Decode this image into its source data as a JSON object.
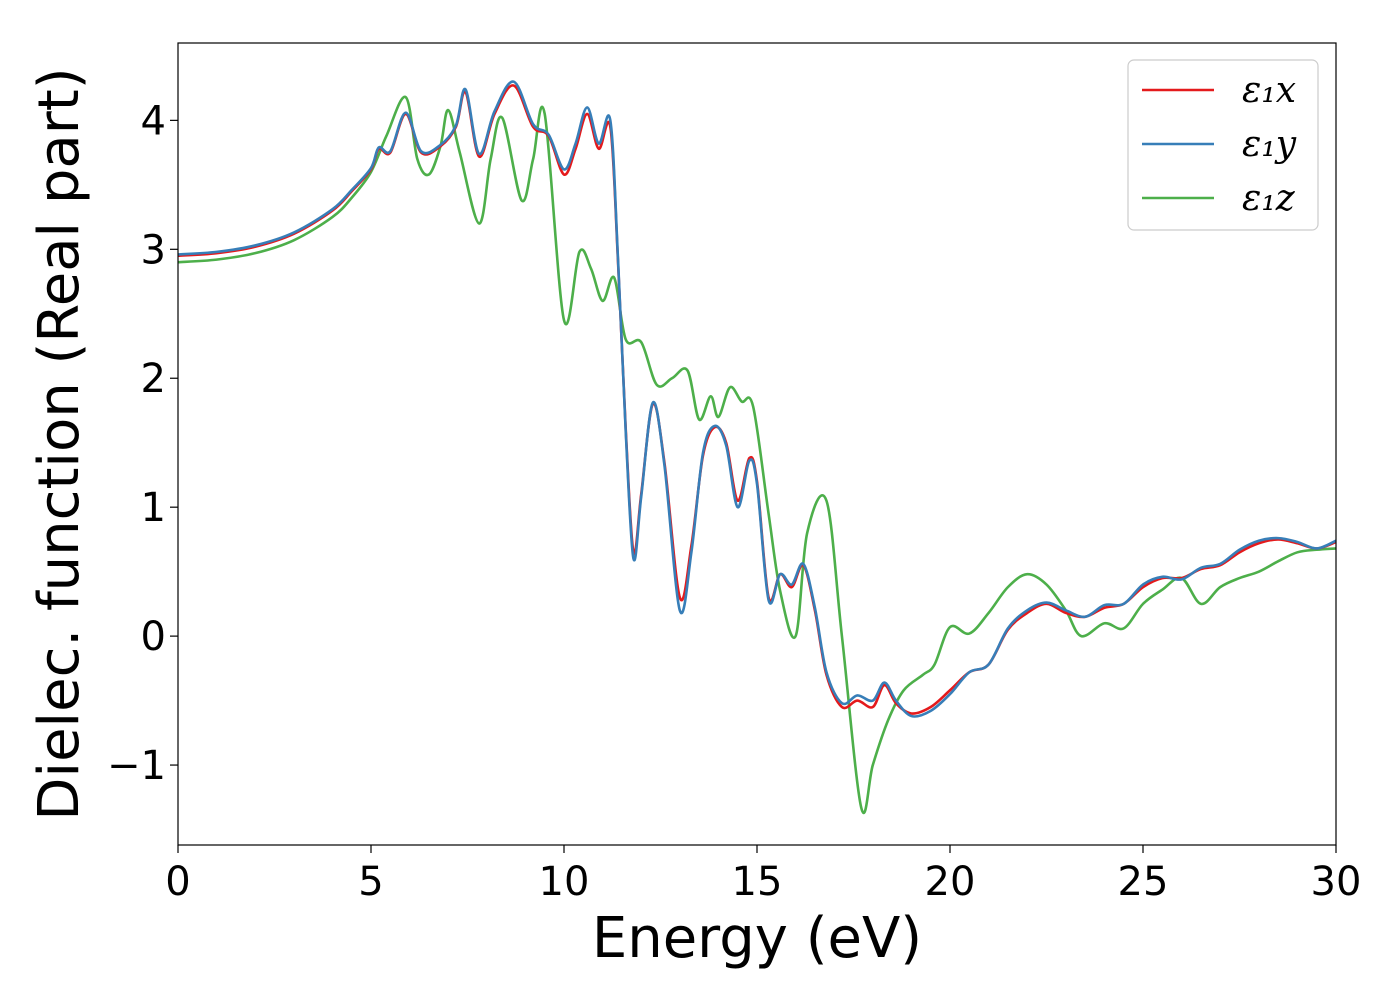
{
  "chart_data": {
    "type": "line",
    "title": "",
    "xlabel": "Energy (eV)",
    "ylabel": "Dielec. function (Real part)",
    "xlim": [
      0,
      30
    ],
    "ylim": [
      -1.62,
      4.6
    ],
    "xticks": [
      0,
      5,
      10,
      15,
      20,
      25,
      30
    ],
    "yticks": [
      -1,
      0,
      1,
      2,
      3,
      4
    ],
    "xtick_labels": [
      "0",
      "5",
      "10",
      "15",
      "20",
      "25",
      "30"
    ],
    "ytick_labels": [
      "−1",
      "0",
      "1",
      "2",
      "3",
      "4"
    ],
    "grid": false,
    "legend_position": "top-right",
    "series": [
      {
        "name": "ε₁x",
        "color": "#e41a1c",
        "x": [
          0,
          1,
          2,
          3,
          4,
          4.5,
          5,
          5.2,
          5.5,
          5.9,
          6.3,
          6.8,
          7.2,
          7.45,
          7.8,
          8.2,
          8.7,
          9.2,
          9.6,
          10.0,
          10.3,
          10.6,
          10.9,
          11.2,
          11.4,
          11.6,
          11.8,
          12.0,
          12.3,
          12.6,
          13.0,
          13.3,
          13.6,
          13.9,
          14.2,
          14.5,
          14.8,
          15.0,
          15.3,
          15.6,
          15.9,
          16.2,
          16.5,
          16.8,
          17.2,
          17.6,
          18.0,
          18.3,
          18.6,
          19.0,
          19.5,
          20.0,
          20.5,
          21.0,
          21.5,
          22.0,
          22.5,
          23.0,
          23.5,
          24.0,
          24.5,
          25.0,
          25.5,
          26.0,
          26.5,
          27.0,
          27.5,
          28.0,
          28.5,
          29.0,
          29.5,
          30
        ],
        "y": [
          2.95,
          2.97,
          3.02,
          3.12,
          3.3,
          3.45,
          3.62,
          3.78,
          3.75,
          4.05,
          3.75,
          3.8,
          3.95,
          4.22,
          3.72,
          4.05,
          4.27,
          3.95,
          3.88,
          3.58,
          3.78,
          4.05,
          3.78,
          3.95,
          2.9,
          1.6,
          0.65,
          1.1,
          1.8,
          1.35,
          0.3,
          0.7,
          1.4,
          1.62,
          1.5,
          1.05,
          1.38,
          1.2,
          0.3,
          0.48,
          0.38,
          0.55,
          0.2,
          -0.3,
          -0.55,
          -0.5,
          -0.55,
          -0.38,
          -0.52,
          -0.6,
          -0.55,
          -0.42,
          -0.28,
          -0.22,
          0.05,
          0.18,
          0.25,
          0.18,
          0.15,
          0.22,
          0.25,
          0.38,
          0.45,
          0.45,
          0.52,
          0.55,
          0.65,
          0.72,
          0.75,
          0.72,
          0.68,
          0.73
        ]
      },
      {
        "name": "ε₁y",
        "color": "#377eb8",
        "x": [
          0,
          1,
          2,
          3,
          4,
          4.5,
          5,
          5.2,
          5.5,
          5.9,
          6.3,
          6.8,
          7.2,
          7.45,
          7.8,
          8.2,
          8.7,
          9.2,
          9.6,
          10.0,
          10.3,
          10.6,
          10.9,
          11.2,
          11.4,
          11.6,
          11.8,
          12.0,
          12.3,
          12.6,
          13.0,
          13.3,
          13.6,
          13.9,
          14.2,
          14.5,
          14.8,
          15.0,
          15.3,
          15.6,
          15.9,
          16.2,
          16.5,
          16.8,
          17.2,
          17.6,
          18.0,
          18.3,
          18.6,
          19.0,
          19.5,
          20.0,
          20.5,
          21.0,
          21.5,
          22.0,
          22.5,
          23.0,
          23.5,
          24.0,
          24.5,
          25.0,
          25.5,
          26.0,
          26.5,
          27.0,
          27.5,
          28.0,
          28.5,
          29.0,
          29.5,
          30
        ],
        "y": [
          2.96,
          2.98,
          3.03,
          3.13,
          3.31,
          3.46,
          3.63,
          3.79,
          3.76,
          4.06,
          3.76,
          3.81,
          3.96,
          4.24,
          3.74,
          4.07,
          4.3,
          3.97,
          3.89,
          3.62,
          3.82,
          4.1,
          3.82,
          4.0,
          2.92,
          1.58,
          0.6,
          1.08,
          1.81,
          1.33,
          0.2,
          0.65,
          1.42,
          1.63,
          1.48,
          1.0,
          1.36,
          1.18,
          0.28,
          0.48,
          0.4,
          0.56,
          0.22,
          -0.28,
          -0.52,
          -0.46,
          -0.5,
          -0.36,
          -0.5,
          -0.62,
          -0.58,
          -0.45,
          -0.28,
          -0.22,
          0.06,
          0.2,
          0.26,
          0.2,
          0.15,
          0.24,
          0.25,
          0.4,
          0.46,
          0.44,
          0.53,
          0.56,
          0.67,
          0.74,
          0.76,
          0.73,
          0.68,
          0.74
        ]
      },
      {
        "name": "ε₁z",
        "color": "#4daf4a",
        "x": [
          0,
          1,
          2,
          3,
          4,
          4.5,
          5,
          5.4,
          5.9,
          6.2,
          6.5,
          6.8,
          7.0,
          7.3,
          7.8,
          8.1,
          8.4,
          8.9,
          9.2,
          9.5,
          10.0,
          10.4,
          10.7,
          11.0,
          11.3,
          11.6,
          12.0,
          12.4,
          12.8,
          13.2,
          13.5,
          13.8,
          14.0,
          14.3,
          14.6,
          14.9,
          15.3,
          15.6,
          16.0,
          16.3,
          16.8,
          17.2,
          17.7,
          18.0,
          18.4,
          18.8,
          19.3,
          19.6,
          20.0,
          20.5,
          21.0,
          21.5,
          22.0,
          22.5,
          23.0,
          23.4,
          24.0,
          24.5,
          25.0,
          25.5,
          26.0,
          26.5,
          27.0,
          27.5,
          28.0,
          28.5,
          29.0,
          29.5,
          30
        ],
        "y": [
          2.9,
          2.92,
          2.97,
          3.07,
          3.25,
          3.4,
          3.6,
          3.88,
          4.18,
          3.7,
          3.58,
          3.8,
          4.08,
          3.75,
          3.2,
          3.7,
          4.02,
          3.38,
          3.7,
          4.05,
          2.45,
          2.98,
          2.85,
          2.6,
          2.78,
          2.3,
          2.28,
          1.95,
          2.0,
          2.06,
          1.68,
          1.86,
          1.7,
          1.93,
          1.82,
          1.78,
          0.95,
          0.35,
          0.0,
          0.8,
          1.05,
          0.0,
          -1.33,
          -1.0,
          -0.65,
          -0.42,
          -0.3,
          -0.22,
          0.07,
          0.02,
          0.18,
          0.38,
          0.48,
          0.4,
          0.2,
          0.0,
          0.1,
          0.06,
          0.25,
          0.36,
          0.45,
          0.25,
          0.38,
          0.45,
          0.5,
          0.58,
          0.65,
          0.67,
          0.68
        ]
      }
    ]
  }
}
